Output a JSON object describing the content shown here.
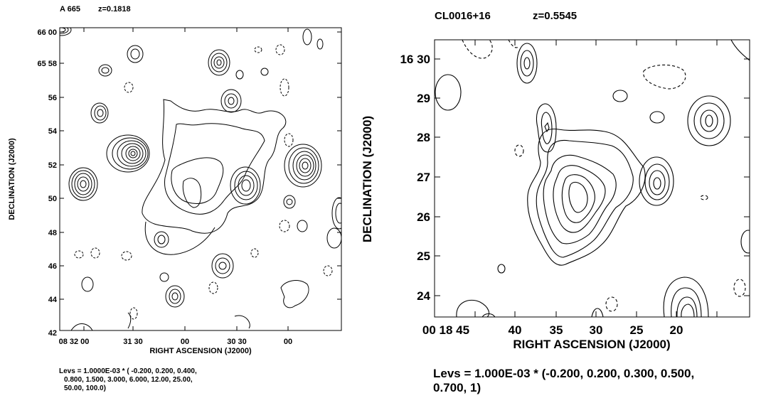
{
  "chart_data": [
    {
      "type": "contour",
      "title": "A 665",
      "redshift": "z=0.1818",
      "xlabel": "RIGHT ASCENSION (J2000)",
      "ylabel": "DECLINATION (J2000)",
      "x_ticks": [
        "08 32 00",
        "31 30",
        "00",
        "30 30",
        "00"
      ],
      "y_ticks": [
        "66 00",
        "65 58",
        "56",
        "54",
        "52",
        "50",
        "48",
        "46",
        "44",
        "42"
      ],
      "levels_caption": [
        "Levs = 1.0000E-03 * ( -0.200, 0.200, 0.400,",
        "0.800, 1.500, 3.000, 6.000, 12.00, 25.00,",
        "50.00, 100.0)"
      ],
      "levels_scale": 0.001,
      "levels": [
        -0.2,
        0.2,
        0.4,
        0.8,
        1.5,
        3.0,
        6.0,
        12.0,
        25.0,
        50.0,
        100.0
      ]
    },
    {
      "type": "contour",
      "title": "CL0016+16",
      "redshift": "z=0.5545",
      "xlabel": "RIGHT ASCENSION (J2000)",
      "ylabel": "DECLINATION (J2000)",
      "x_ticks": [
        "00 18 45",
        "40",
        "35",
        "30",
        "25",
        "20"
      ],
      "y_ticks": [
        "16 30",
        "29",
        "28",
        "27",
        "26",
        "25",
        "24"
      ],
      "levels_caption": [
        "Levs = 1.000E-03 * (-0.200, 0.200, 0.300, 0.500,",
        "0.700, 1)"
      ],
      "levels_scale": 0.001,
      "levels": [
        -0.2,
        0.2,
        0.3,
        0.5,
        0.7,
        1.0
      ]
    }
  ]
}
